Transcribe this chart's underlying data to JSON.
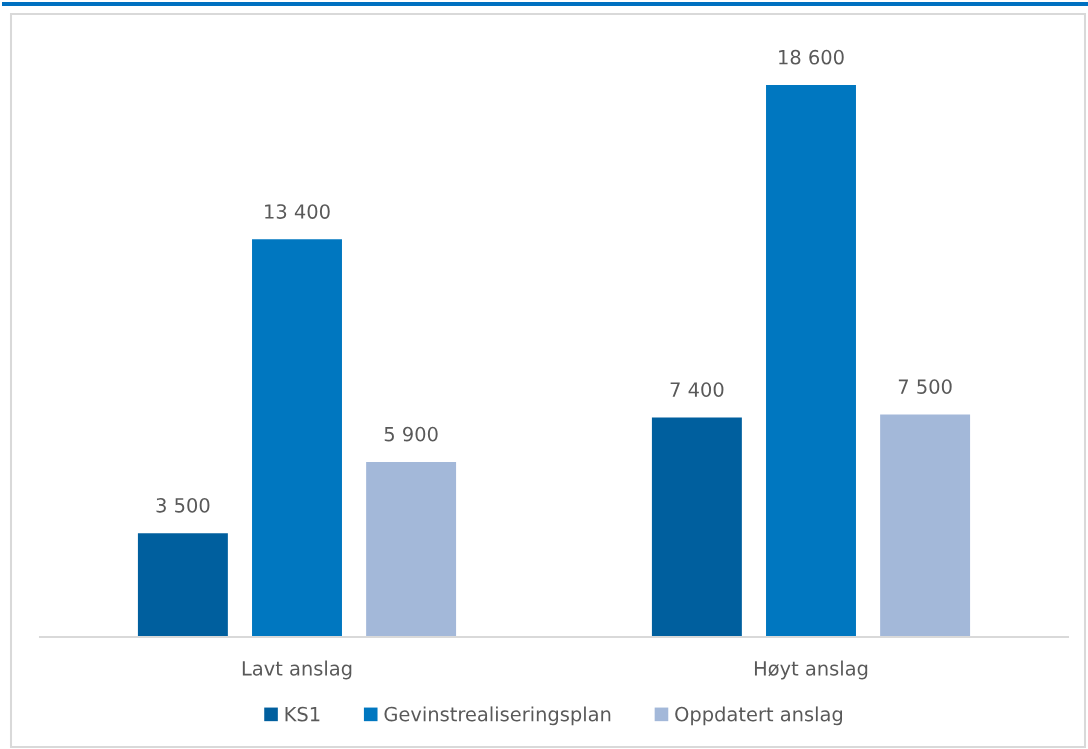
{
  "chart_data": {
    "type": "bar",
    "categories": [
      "Lavt anslag",
      "Høyt anslag"
    ],
    "series": [
      {
        "name": "KS1",
        "color": "#005f9e",
        "values": [
          3500,
          7400
        ],
        "value_labels": [
          "3 500",
          "7 400"
        ]
      },
      {
        "name": "Gevinstrealiseringsplan",
        "color": "#0077c0",
        "values": [
          13400,
          18600
        ],
        "value_labels": [
          "13 400",
          "18 600"
        ]
      },
      {
        "name": "Oppdatert anslag",
        "color": "#a3b8d9",
        "values": [
          5900,
          7500
        ],
        "value_labels": [
          "5 900",
          "7 500"
        ]
      }
    ],
    "legend": "bottom"
  }
}
